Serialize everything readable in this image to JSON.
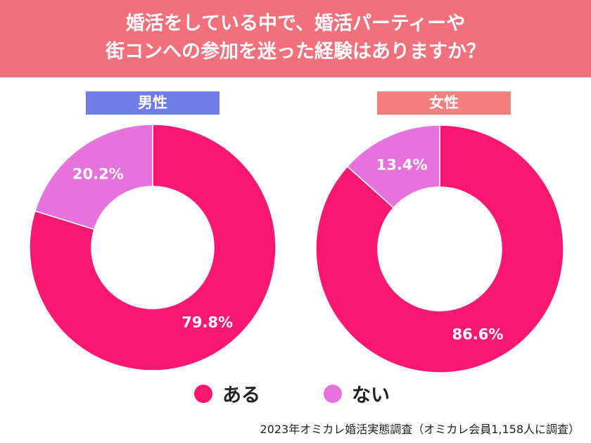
{
  "title_lines": [
    "婚活をしている中で、婚活パーティーや",
    "街コンへの参加を迷った経験はありますか？"
  ],
  "colors": {
    "header": "#f0707c",
    "aru": "#fa1873",
    "nai": "#e673dc",
    "male_label": "#6f7de8",
    "female_label": "#f47f7f"
  },
  "chart_data": [
    {
      "type": "pie",
      "title": "男性",
      "donut": true,
      "categories": [
        "ある",
        "ない"
      ],
      "values": [
        79.8,
        20.2
      ],
      "labels": [
        "79.8%",
        "20.2%"
      ]
    },
    {
      "type": "pie",
      "title": "女性",
      "donut": true,
      "categories": [
        "ある",
        "ない"
      ],
      "values": [
        86.6,
        13.4
      ],
      "labels": [
        "86.6%",
        "13.4%"
      ]
    }
  ],
  "legend": [
    "ある",
    "ない"
  ],
  "footer": "2023年オミカレ婚活実態調査（オミカレ会員1,158人に調査）"
}
